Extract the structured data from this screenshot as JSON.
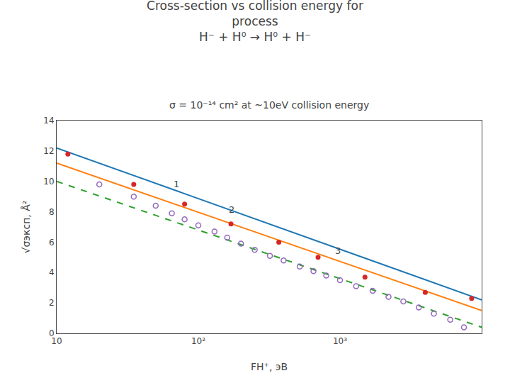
{
  "chart_data": {
    "type": "line",
    "title": [
      "Cross-section vs collision energy for",
      "process",
      "H⁻ + H⁰ → H⁰ + H⁻"
    ],
    "subtitle": "σ = 10⁻¹⁴ cm² at ~10eV collision energy",
    "xlabel": "FH⁺, эВ",
    "ylabel": "√σэксп, Å²",
    "log": "x",
    "grid": false,
    "xlim": [
      10,
      10000
    ],
    "xticks": [
      10,
      {
        "value": 100,
        "label": "10²"
      },
      {
        "value": 1000,
        "label": "10³"
      }
    ],
    "ylim": [
      0,
      14
    ],
    "yticks": [
      0,
      2,
      4,
      6,
      8,
      10,
      12,
      14
    ],
    "series": [
      {
        "type": "line",
        "line_style": "solid",
        "x": [
          10,
          10000
        ],
        "values": [
          12.2,
          2.2
        ]
      },
      {
        "type": "line",
        "line_style": "solid",
        "x": [
          10,
          10000
        ],
        "values": [
          11.2,
          1.5
        ]
      },
      {
        "type": "line",
        "line_style": "dashed",
        "x": [
          10,
          10000
        ],
        "values": [
          10.0,
          0.4
        ]
      },
      {
        "type": "scatter",
        "marker": "filled",
        "x": [
          12,
          35,
          80,
          170,
          370,
          700,
          1500,
          4000,
          8500
        ],
        "values": [
          11.8,
          9.8,
          8.5,
          7.2,
          6.0,
          5.0,
          3.7,
          2.7,
          2.3
        ]
      },
      {
        "type": "scatter",
        "marker": "open",
        "x": [
          20,
          35,
          50,
          65,
          80,
          100,
          130,
          160,
          200,
          250,
          320,
          400,
          520,
          650,
          800,
          1000,
          1300,
          1700,
          2200,
          2800,
          3600,
          4600,
          6000,
          7500
        ],
        "values": [
          9.8,
          9.0,
          8.4,
          7.9,
          7.5,
          7.1,
          6.7,
          6.3,
          5.9,
          5.5,
          5.1,
          4.8,
          4.4,
          4.1,
          3.8,
          3.5,
          3.1,
          2.8,
          2.4,
          2.1,
          1.7,
          1.3,
          0.9,
          0.4
        ]
      }
    ],
    "annotations": [
      {
        "text": "1",
        "x": 65,
        "y": 9.4
      },
      {
        "text": "2",
        "x": 160,
        "y": 7.7
      },
      {
        "text": "3",
        "x": 900,
        "y": 5.0
      }
    ]
  }
}
